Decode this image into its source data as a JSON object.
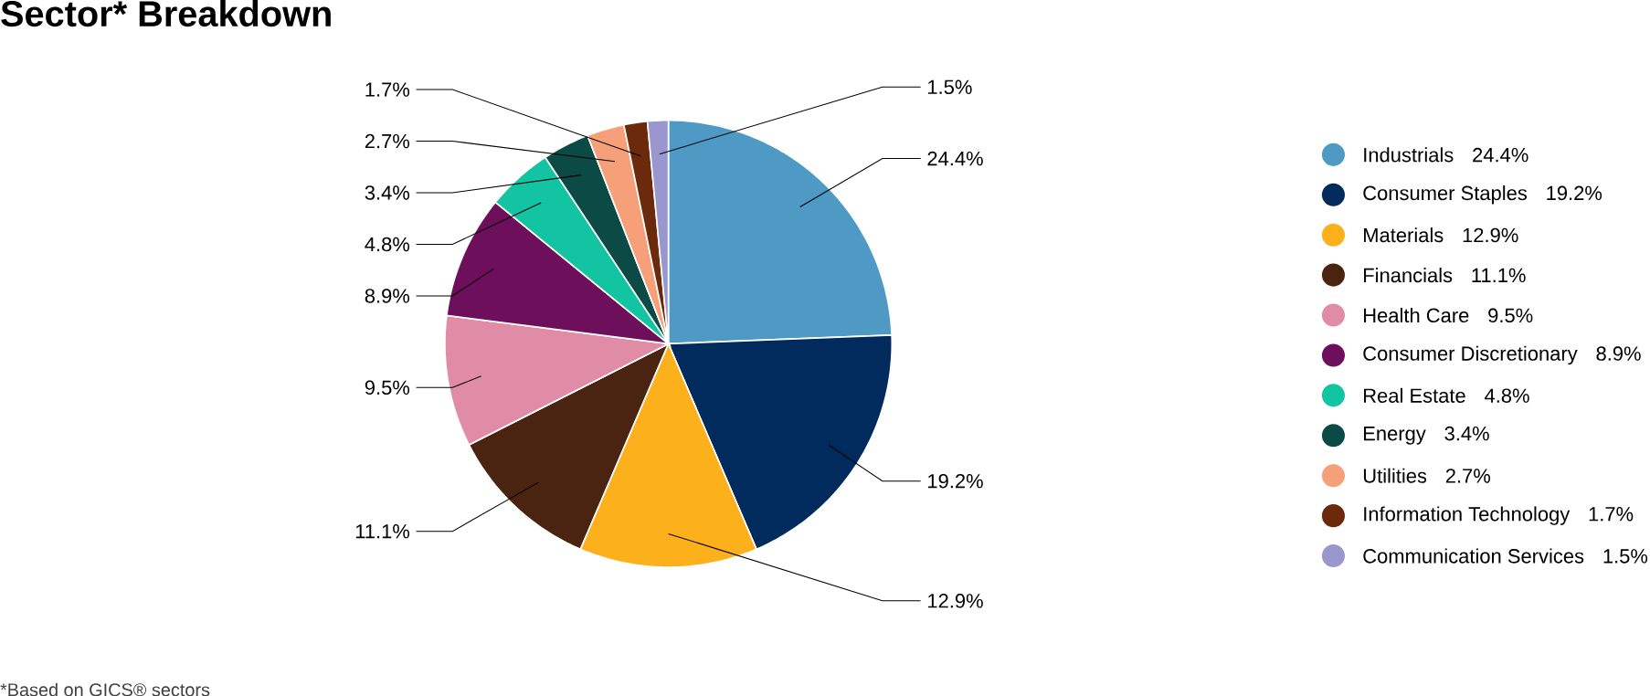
{
  "chart_data": {
    "type": "pie",
    "title": "Sector* Breakdown",
    "categories": [
      "Industrials",
      "Consumer Staples",
      "Materials",
      "Financials",
      "Health Care",
      "Consumer Discretionary",
      "Real Estate",
      "Energy",
      "Utilities",
      "Information Technology",
      "Communication Services"
    ],
    "values": [
      24.4,
      19.2,
      12.9,
      11.1,
      9.5,
      8.9,
      4.8,
      3.4,
      2.7,
      1.7,
      1.5
    ],
    "value_labels": [
      "24.4%",
      "19.2%",
      "12.9%",
      "11.1%",
      "9.5%",
      "8.9%",
      "4.8%",
      "3.4%",
      "2.7%",
      "1.7%",
      "1.5%"
    ],
    "colors": [
      "#4e9ac5",
      "#002b5c",
      "#fcb11c",
      "#4a2411",
      "#e08ca6",
      "#6d0f5a",
      "#13c4a3",
      "#0c4a45",
      "#f6a07a",
      "#6b2a0c",
      "#9a97ce"
    ],
    "legend": "right",
    "annotations": [
      "*Based on GICS® sectors"
    ]
  }
}
